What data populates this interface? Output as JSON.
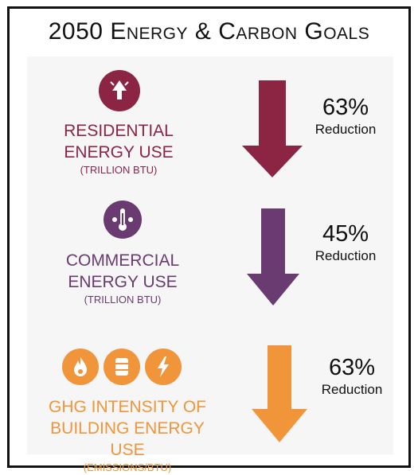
{
  "title": "2050 Energy & Carbon Goals",
  "colors": {
    "residential": "#8c2443",
    "commercial": "#6a3b70",
    "ghg": "#f0953a"
  },
  "goals": [
    {
      "icon": "lamp-icon",
      "label_line1": "RESIDENTIAL",
      "label_line2": "ENERGY USE",
      "unit": "(TRILLION BTU)",
      "value": "63%",
      "change": "Reduction"
    },
    {
      "icon": "thermometer-icon",
      "label_line1": "COMMERCIAL",
      "label_line2": "ENERGY USE",
      "unit": "(TRILLION BTU)",
      "value": "45%",
      "change": "Reduction"
    },
    {
      "icons": [
        "flame-icon",
        "fuel-barrel-icon",
        "lightning-icon"
      ],
      "label_line1": "GHG INTENSITY OF",
      "label_line2": "BUILDING ENERGY USE",
      "unit": "(EMISSIONS/BTU)",
      "value": "63%",
      "change": "Reduction"
    }
  ]
}
